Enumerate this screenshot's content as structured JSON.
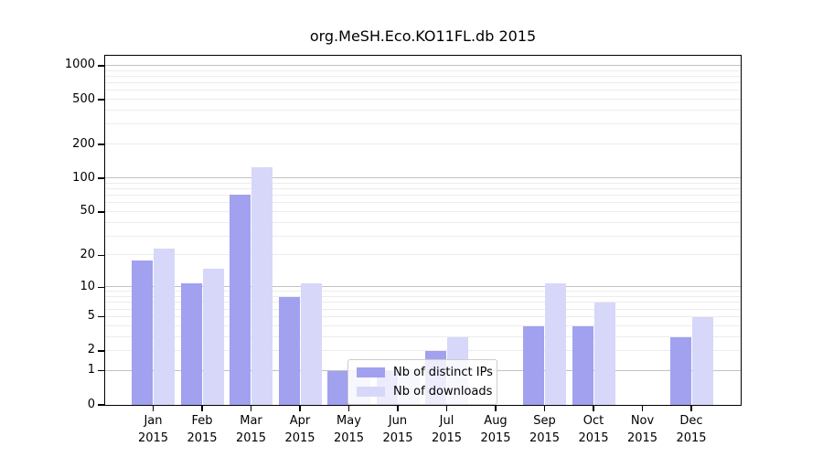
{
  "title": "org.MeSH.Eco.KO11FL.db 2015",
  "chart_data": {
    "type": "bar",
    "title": "org.MeSH.Eco.KO11FL.db 2015",
    "categories": [
      "Jan 2015",
      "Feb 2015",
      "Mar 2015",
      "Apr 2015",
      "May 2015",
      "Jun 2015",
      "Jul 2015",
      "Aug 2015",
      "Sep 2015",
      "Oct 2015",
      "Nov 2015",
      "Dec 2015"
    ],
    "x_tick_month": [
      "Jan",
      "Feb",
      "Mar",
      "Apr",
      "May",
      "Jun",
      "Jul",
      "Aug",
      "Sep",
      "Oct",
      "Nov",
      "Dec"
    ],
    "x_tick_year": "2015",
    "series": [
      {
        "name": "Nb of distinct IPs",
        "color": "#a1a1f0",
        "values": [
          18,
          11,
          72,
          8,
          1,
          1,
          2,
          0,
          4,
          4,
          0,
          3
        ]
      },
      {
        "name": "Nb of downloads",
        "color": "#d7d7f9",
        "values": [
          23,
          15,
          125,
          11,
          1,
          1,
          3,
          0,
          11,
          7,
          0,
          5
        ]
      }
    ],
    "y_scale": "log1p",
    "y_ticks": [
      0,
      1,
      2,
      5,
      10,
      20,
      50,
      100,
      200,
      500,
      1000
    ],
    "y_minor_gridlines": [
      3,
      4,
      6,
      7,
      8,
      9,
      30,
      40,
      60,
      70,
      80,
      90,
      300,
      400,
      600,
      700,
      800,
      900
    ],
    "y_max": 1226,
    "ylim": [
      0,
      1226
    ],
    "xlabel": "",
    "ylabel": "",
    "grid": "horizontal",
    "legend_position": "inside-lower-center"
  },
  "legend": {
    "items": [
      {
        "label": "Nb of distinct IPs",
        "color": "#a1a1f0"
      },
      {
        "label": "Nb of downloads",
        "color": "#d7d7f9"
      }
    ]
  },
  "colors": {
    "background": "#ffffff",
    "spine": "#000000",
    "grid_major": "#c2c2c2",
    "grid_minor": "#ececec",
    "text": "#000000"
  }
}
